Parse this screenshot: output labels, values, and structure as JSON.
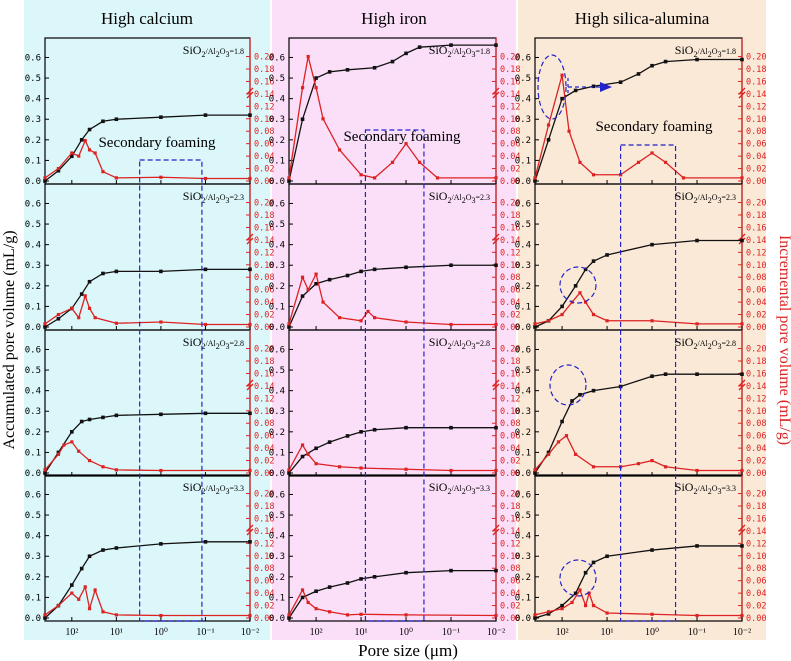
{
  "columns": [
    {
      "title": "High calcium",
      "bg": "#dcf7fa"
    },
    {
      "title": "High iron",
      "bg": "#fbdff9"
    },
    {
      "title": "High silica-alumina",
      "bg": "#fbe9d8"
    }
  ],
  "row_labels": [
    "1.8",
    "2.3",
    "2.8",
    "3.3"
  ],
  "ratio_prefix": "SiO",
  "annotation": "Secondary foaming",
  "xlabel": "Pore size (μm)",
  "ylabel_left": "Accumulated pore volume (mL/g)",
  "ylabel_right": "Incremental pore volume (mL/g)",
  "left_ticks": [
    "0.0",
    "0.1",
    "0.2",
    "0.3",
    "0.4",
    "0.5",
    "0.6"
  ],
  "right_ticks": [
    "0.00",
    "0.02",
    "0.04",
    "0.06",
    "0.08",
    "0.10",
    "0.12",
    "0.14",
    "0.16",
    "0.18",
    "0.20"
  ],
  "x_ticks": [
    "10²",
    "10¹",
    "10⁰",
    "10⁻¹",
    "10⁻²"
  ],
  "colors": {
    "accumulated": "#111111",
    "incremental": "#dd2222",
    "annotation": "#2222cc"
  },
  "chart_data": {
    "type": "line",
    "x_scale": "log, reversed (400 to 0.01 μm)",
    "ylim_left": [
      0,
      0.68
    ],
    "ylim_right": [
      0,
      0.225
    ],
    "panels": [
      {
        "column": "High calcium",
        "ratio": "1.8",
        "accumulated": [
          [
            400,
            0
          ],
          [
            200,
            0.05
          ],
          [
            100,
            0.12
          ],
          [
            60,
            0.2
          ],
          [
            40,
            0.25
          ],
          [
            20,
            0.29
          ],
          [
            10,
            0.3
          ],
          [
            1,
            0.31
          ],
          [
            0.1,
            0.32
          ],
          [
            0.01,
            0.32
          ]
        ],
        "incremental": [
          [
            400,
            0.005
          ],
          [
            200,
            0.02
          ],
          [
            100,
            0.045
          ],
          [
            70,
            0.04
          ],
          [
            50,
            0.065
          ],
          [
            40,
            0.05
          ],
          [
            30,
            0.045
          ],
          [
            20,
            0.015
          ],
          [
            10,
            0.005
          ],
          [
            1,
            0.006
          ],
          [
            0.1,
            0.004
          ],
          [
            0.01,
            0.004
          ]
        ]
      },
      {
        "column": "High iron",
        "ratio": "1.8",
        "accumulated": [
          [
            400,
            0
          ],
          [
            200,
            0.3
          ],
          [
            100,
            0.5
          ],
          [
            50,
            0.53
          ],
          [
            20,
            0.54
          ],
          [
            5,
            0.55
          ],
          [
            2,
            0.58
          ],
          [
            1,
            0.62
          ],
          [
            0.5,
            0.65
          ],
          [
            0.1,
            0.66
          ],
          [
            0.01,
            0.66
          ]
        ],
        "incremental": [
          [
            400,
            0.005
          ],
          [
            200,
            0.15
          ],
          [
            150,
            0.2
          ],
          [
            100,
            0.15
          ],
          [
            70,
            0.1
          ],
          [
            30,
            0.05
          ],
          [
            10,
            0.01
          ],
          [
            5,
            0.005
          ],
          [
            2,
            0.03
          ],
          [
            1,
            0.06
          ],
          [
            0.5,
            0.03
          ],
          [
            0.2,
            0.005
          ],
          [
            0.01,
            0.005
          ]
        ]
      },
      {
        "column": "High silica-alumina",
        "ratio": "1.8",
        "accumulated": [
          [
            400,
            0
          ],
          [
            200,
            0.2
          ],
          [
            100,
            0.4
          ],
          [
            50,
            0.44
          ],
          [
            20,
            0.46
          ],
          [
            5,
            0.48
          ],
          [
            2,
            0.52
          ],
          [
            1,
            0.56
          ],
          [
            0.5,
            0.58
          ],
          [
            0.1,
            0.59
          ],
          [
            0.01,
            0.59
          ]
        ],
        "incremental": [
          [
            400,
            0.005
          ],
          [
            200,
            0.09
          ],
          [
            100,
            0.17
          ],
          [
            70,
            0.08
          ],
          [
            40,
            0.03
          ],
          [
            20,
            0.01
          ],
          [
            5,
            0.01
          ],
          [
            2,
            0.03
          ],
          [
            1,
            0.045
          ],
          [
            0.5,
            0.03
          ],
          [
            0.2,
            0.005
          ],
          [
            0.01,
            0.005
          ]
        ]
      },
      {
        "column": "High calcium",
        "ratio": "2.3",
        "accumulated": [
          [
            400,
            0
          ],
          [
            200,
            0.04
          ],
          [
            100,
            0.09
          ],
          [
            60,
            0.16
          ],
          [
            40,
            0.22
          ],
          [
            20,
            0.26
          ],
          [
            10,
            0.27
          ],
          [
            1,
            0.27
          ],
          [
            0.1,
            0.28
          ],
          [
            0.01,
            0.28
          ]
        ],
        "incremental": [
          [
            400,
            0.005
          ],
          [
            200,
            0.02
          ],
          [
            100,
            0.03
          ],
          [
            70,
            0.015
          ],
          [
            50,
            0.05
          ],
          [
            40,
            0.03
          ],
          [
            30,
            0.015
          ],
          [
            10,
            0.006
          ],
          [
            1,
            0.008
          ],
          [
            0.1,
            0.004
          ],
          [
            0.01,
            0.004
          ]
        ]
      },
      {
        "column": "High iron",
        "ratio": "2.3",
        "accumulated": [
          [
            400,
            0
          ],
          [
            200,
            0.15
          ],
          [
            100,
            0.21
          ],
          [
            50,
            0.23
          ],
          [
            20,
            0.25
          ],
          [
            10,
            0.27
          ],
          [
            5,
            0.28
          ],
          [
            1,
            0.29
          ],
          [
            0.1,
            0.3
          ],
          [
            0.01,
            0.3
          ]
        ],
        "incremental": [
          [
            400,
            0.005
          ],
          [
            200,
            0.08
          ],
          [
            150,
            0.06
          ],
          [
            100,
            0.085
          ],
          [
            70,
            0.04
          ],
          [
            30,
            0.015
          ],
          [
            10,
            0.01
          ],
          [
            7,
            0.025
          ],
          [
            5,
            0.015
          ],
          [
            1,
            0.008
          ],
          [
            0.1,
            0.004
          ],
          [
            0.01,
            0.004
          ]
        ]
      },
      {
        "column": "High silica-alumina",
        "ratio": "2.3",
        "accumulated": [
          [
            400,
            0
          ],
          [
            200,
            0.03
          ],
          [
            100,
            0.1
          ],
          [
            50,
            0.2
          ],
          [
            30,
            0.28
          ],
          [
            20,
            0.32
          ],
          [
            10,
            0.35
          ],
          [
            1,
            0.4
          ],
          [
            0.1,
            0.42
          ],
          [
            0.01,
            0.42
          ]
        ],
        "incremental": [
          [
            400,
            0.005
          ],
          [
            200,
            0.01
          ],
          [
            100,
            0.02
          ],
          [
            60,
            0.04
          ],
          [
            40,
            0.055
          ],
          [
            30,
            0.04
          ],
          [
            20,
            0.02
          ],
          [
            10,
            0.01
          ],
          [
            1,
            0.01
          ],
          [
            0.1,
            0.005
          ],
          [
            0.01,
            0.005
          ]
        ]
      },
      {
        "column": "High calcium",
        "ratio": "2.8",
        "accumulated": [
          [
            400,
            0
          ],
          [
            200,
            0.1
          ],
          [
            100,
            0.2
          ],
          [
            60,
            0.25
          ],
          [
            40,
            0.26
          ],
          [
            20,
            0.27
          ],
          [
            10,
            0.28
          ],
          [
            1,
            0.285
          ],
          [
            0.1,
            0.29
          ],
          [
            0.01,
            0.29
          ]
        ],
        "incremental": [
          [
            400,
            0.005
          ],
          [
            200,
            0.03
          ],
          [
            150,
            0.045
          ],
          [
            100,
            0.05
          ],
          [
            70,
            0.035
          ],
          [
            40,
            0.02
          ],
          [
            20,
            0.01
          ],
          [
            10,
            0.005
          ],
          [
            1,
            0.004
          ],
          [
            0.01,
            0.004
          ]
        ]
      },
      {
        "column": "High iron",
        "ratio": "2.8",
        "accumulated": [
          [
            400,
            0
          ],
          [
            200,
            0.08
          ],
          [
            100,
            0.12
          ],
          [
            50,
            0.15
          ],
          [
            20,
            0.18
          ],
          [
            10,
            0.2
          ],
          [
            5,
            0.21
          ],
          [
            1,
            0.22
          ],
          [
            0.1,
            0.22
          ],
          [
            0.01,
            0.22
          ]
        ],
        "incremental": [
          [
            400,
            0.005
          ],
          [
            200,
            0.045
          ],
          [
            150,
            0.03
          ],
          [
            100,
            0.015
          ],
          [
            30,
            0.01
          ],
          [
            10,
            0.008
          ],
          [
            1,
            0.006
          ],
          [
            0.1,
            0.004
          ],
          [
            0.01,
            0.004
          ]
        ]
      },
      {
        "column": "High silica-alumina",
        "ratio": "2.8",
        "accumulated": [
          [
            400,
            0
          ],
          [
            200,
            0.1
          ],
          [
            100,
            0.25
          ],
          [
            60,
            0.35
          ],
          [
            40,
            0.38
          ],
          [
            20,
            0.4
          ],
          [
            5,
            0.42
          ],
          [
            1,
            0.47
          ],
          [
            0.5,
            0.48
          ],
          [
            0.1,
            0.48
          ],
          [
            0.01,
            0.48
          ]
        ],
        "incremental": [
          [
            400,
            0.005
          ],
          [
            200,
            0.03
          ],
          [
            120,
            0.05
          ],
          [
            80,
            0.06
          ],
          [
            50,
            0.03
          ],
          [
            20,
            0.01
          ],
          [
            5,
            0.01
          ],
          [
            2,
            0.015
          ],
          [
            1,
            0.02
          ],
          [
            0.5,
            0.01
          ],
          [
            0.1,
            0.004
          ],
          [
            0.01,
            0.004
          ]
        ]
      },
      {
        "column": "High calcium",
        "ratio": "3.3",
        "accumulated": [
          [
            400,
            0
          ],
          [
            200,
            0.06
          ],
          [
            100,
            0.16
          ],
          [
            60,
            0.24
          ],
          [
            40,
            0.3
          ],
          [
            20,
            0.33
          ],
          [
            10,
            0.34
          ],
          [
            1,
            0.36
          ],
          [
            0.1,
            0.37
          ],
          [
            0.01,
            0.37
          ]
        ],
        "incremental": [
          [
            400,
            0.005
          ],
          [
            200,
            0.02
          ],
          [
            100,
            0.04
          ],
          [
            70,
            0.03
          ],
          [
            50,
            0.05
          ],
          [
            40,
            0.015
          ],
          [
            30,
            0.045
          ],
          [
            20,
            0.01
          ],
          [
            10,
            0.005
          ],
          [
            1,
            0.004
          ],
          [
            0.01,
            0.004
          ]
        ]
      },
      {
        "column": "High iron",
        "ratio": "3.3",
        "accumulated": [
          [
            400,
            0
          ],
          [
            200,
            0.1
          ],
          [
            100,
            0.13
          ],
          [
            50,
            0.15
          ],
          [
            20,
            0.17
          ],
          [
            10,
            0.19
          ],
          [
            5,
            0.2
          ],
          [
            1,
            0.22
          ],
          [
            0.1,
            0.23
          ],
          [
            0.01,
            0.23
          ]
        ],
        "incremental": [
          [
            400,
            0.005
          ],
          [
            200,
            0.045
          ],
          [
            150,
            0.025
          ],
          [
            100,
            0.015
          ],
          [
            50,
            0.01
          ],
          [
            20,
            0.005
          ],
          [
            10,
            0.006
          ],
          [
            1,
            0.005
          ],
          [
            0.01,
            0.004
          ]
        ]
      },
      {
        "column": "High silica-alumina",
        "ratio": "3.3",
        "accumulated": [
          [
            400,
            0
          ],
          [
            200,
            0.02
          ],
          [
            100,
            0.06
          ],
          [
            50,
            0.12
          ],
          [
            30,
            0.22
          ],
          [
            20,
            0.27
          ],
          [
            10,
            0.3
          ],
          [
            1,
            0.33
          ],
          [
            0.1,
            0.35
          ],
          [
            0.01,
            0.35
          ]
        ],
        "incremental": [
          [
            400,
            0.005
          ],
          [
            200,
            0.01
          ],
          [
            100,
            0.015
          ],
          [
            60,
            0.025
          ],
          [
            40,
            0.045
          ],
          [
            30,
            0.02
          ],
          [
            25,
            0.04
          ],
          [
            20,
            0.02
          ],
          [
            10,
            0.008
          ],
          [
            1,
            0.006
          ],
          [
            0.1,
            0.004
          ],
          [
            0.01,
            0.004
          ]
        ]
      }
    ]
  }
}
